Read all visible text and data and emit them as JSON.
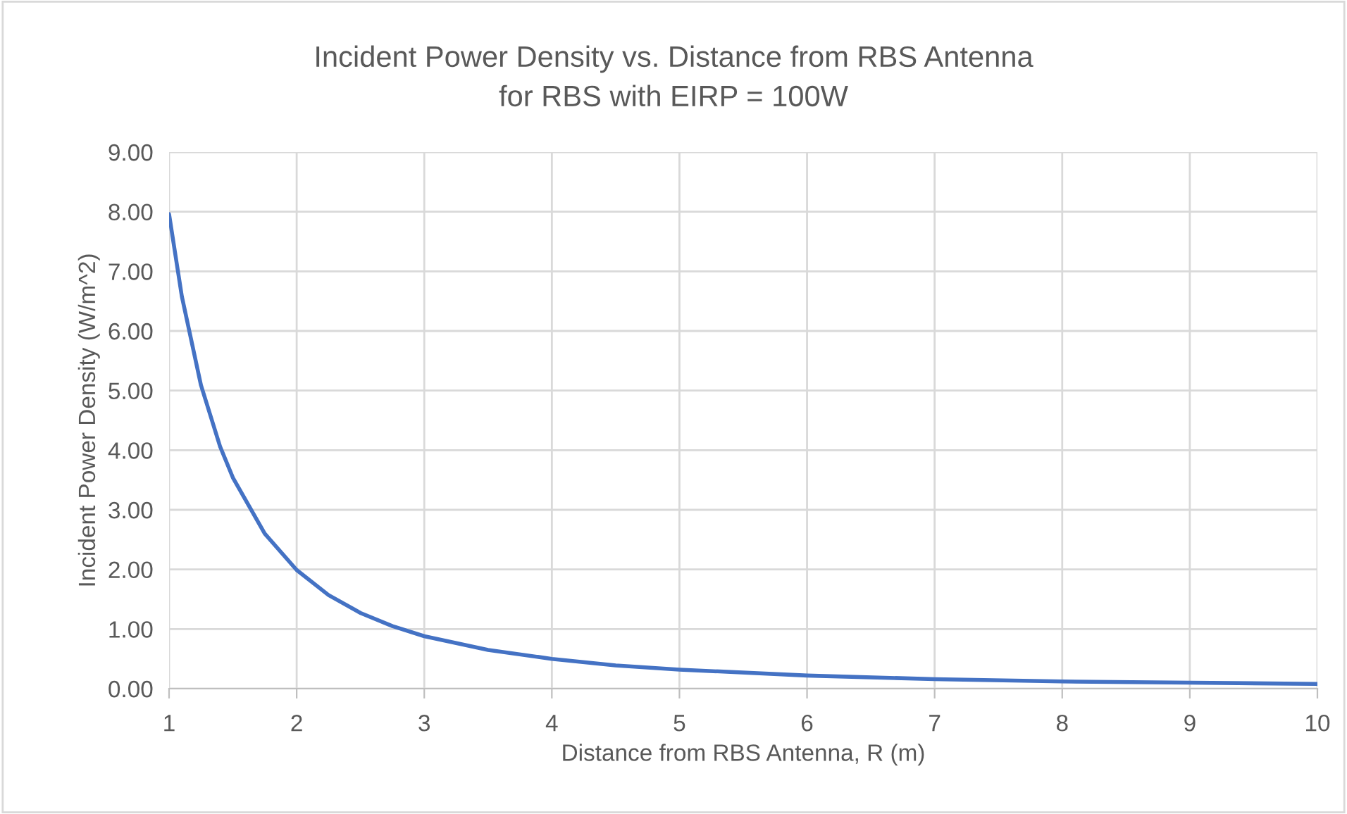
{
  "chart_data": {
    "type": "line",
    "title": "Incident Power Density vs. Distance from RBS Antenna",
    "subtitle": "for RBS with EIRP = 100W",
    "xlabel": "Distance from RBS Antenna, R (m)",
    "ylabel": "Incident Power Density (W/m^2)",
    "series": [
      {
        "color": "#4472c4",
        "x": [
          1,
          1.1,
          1.25,
          1.4,
          1.5,
          1.75,
          2,
          2.25,
          2.5,
          2.75,
          3,
          3.5,
          4,
          4.5,
          5,
          6,
          7,
          8,
          9,
          10
        ],
        "values": [
          7.96,
          6.58,
          5.09,
          4.06,
          3.54,
          2.6,
          1.99,
          1.57,
          1.27,
          1.05,
          0.88,
          0.65,
          0.5,
          0.39,
          0.32,
          0.22,
          0.16,
          0.12,
          0.1,
          0.08
        ]
      }
    ],
    "xlim": [
      1,
      10
    ],
    "xticks": [
      1,
      2,
      3,
      4,
      5,
      6,
      7,
      8,
      9,
      10
    ],
    "ylim": [
      0,
      9
    ],
    "yticks": [
      {
        "value": 0,
        "label": "0.00"
      },
      {
        "value": 1,
        "label": "1.00"
      },
      {
        "value": 2,
        "label": "2.00"
      },
      {
        "value": 3,
        "label": "3.00"
      },
      {
        "value": 4,
        "label": "4.00"
      },
      {
        "value": 5,
        "label": "5.00"
      },
      {
        "value": 6,
        "label": "6.00"
      },
      {
        "value": 7,
        "label": "7.00"
      },
      {
        "value": 8,
        "label": "8.00"
      },
      {
        "value": 9,
        "label": "9.00"
      }
    ],
    "grid": true,
    "marker": "none",
    "line_style": "solid"
  }
}
